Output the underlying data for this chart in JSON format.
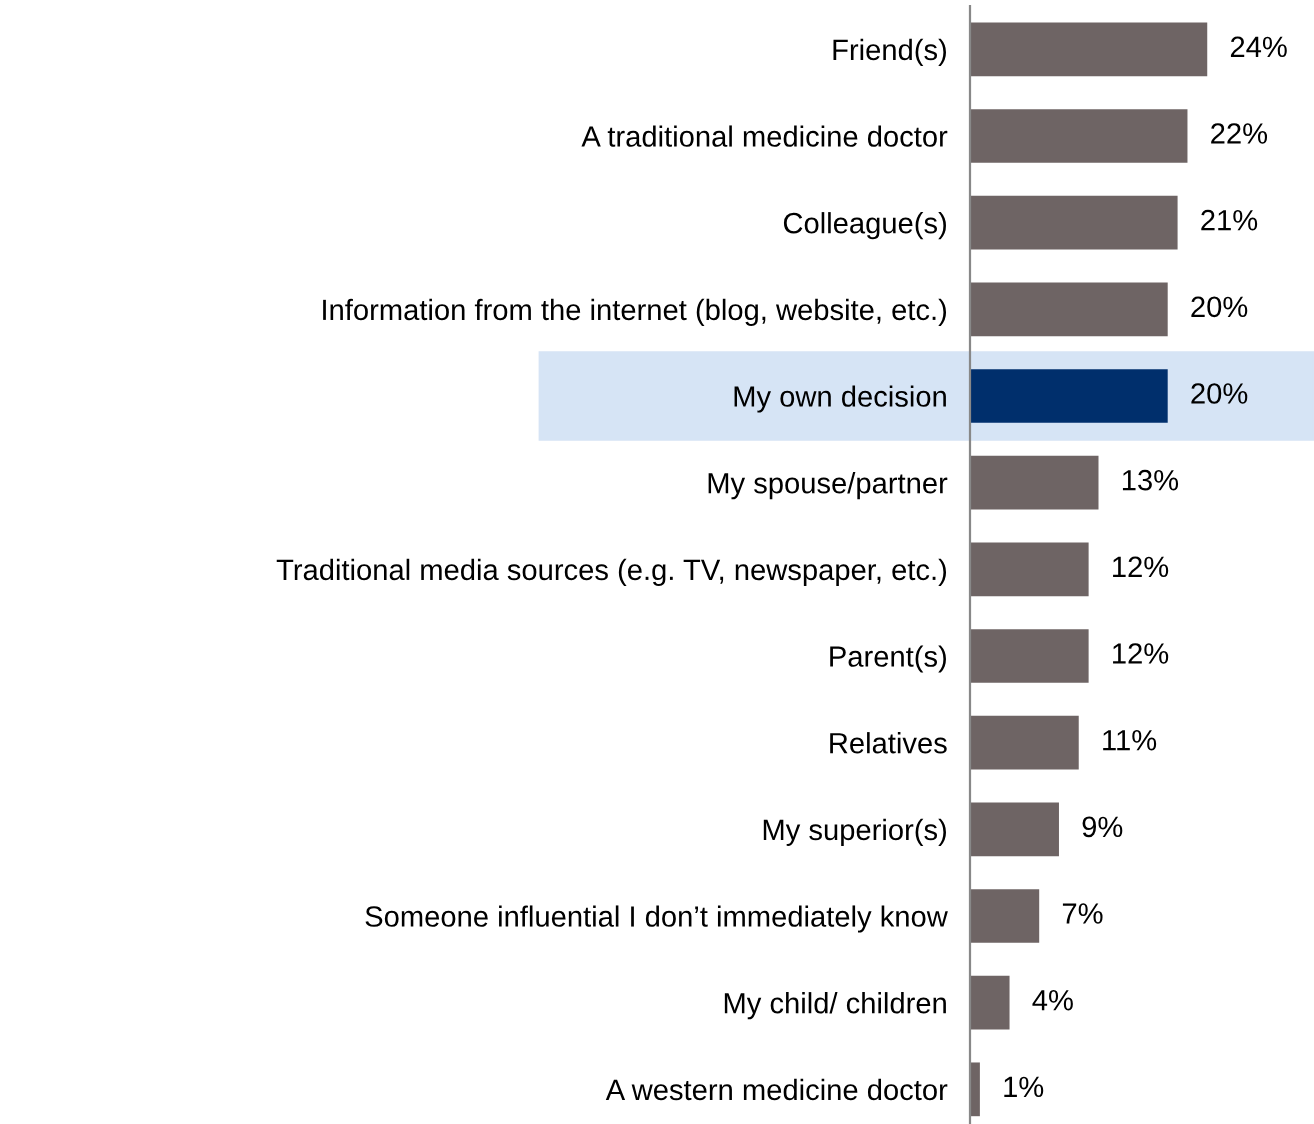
{
  "chart_data": {
    "type": "bar",
    "orientation": "horizontal",
    "categories": [
      "Friend(s)",
      "A traditional medicine doctor",
      "Colleague(s)",
      "Information from the internet (blog, website, etc.)",
      "My own decision",
      "My spouse/partner",
      "Traditional media sources (e.g. TV, newspaper, etc.)",
      "Parent(s)",
      "Relatives",
      "My superior(s)",
      "Someone influential I don’t immediately know",
      "My child/ children",
      "A western medicine doctor"
    ],
    "values": [
      24,
      22,
      21,
      20,
      20,
      13,
      12,
      12,
      11,
      9,
      7,
      4,
      1
    ],
    "value_labels": [
      "24%",
      "22%",
      "21%",
      "20%",
      "20%",
      "13%",
      "12%",
      "12%",
      "11%",
      "9%",
      "7%",
      "4%",
      "1%"
    ],
    "colors": [
      "#6e6464",
      "#6e6464",
      "#6e6464",
      "#6e6464",
      "#002f6c",
      "#6e6464",
      "#6e6464",
      "#6e6464",
      "#6e6464",
      "#6e6464",
      "#6e6464",
      "#6e6464",
      "#6e6464"
    ],
    "bands": [
      {
        "axis": "y",
        "from": "My own decision",
        "to": "My own decision",
        "color": "#d6e4f5"
      }
    ],
    "grid": false
  }
}
